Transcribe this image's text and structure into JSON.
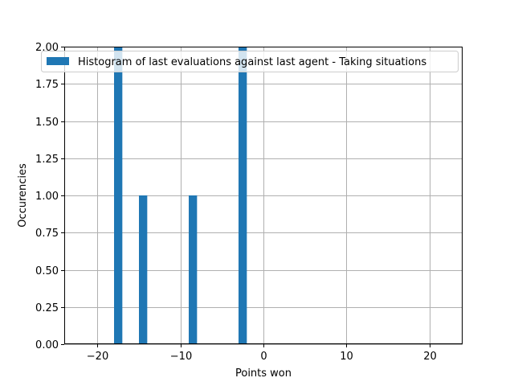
{
  "chart_data": {
    "type": "bar",
    "title": "",
    "xlabel": "Points won",
    "ylabel": "Occurencies",
    "xlim": [
      -24,
      24
    ],
    "ylim": [
      0,
      2.0
    ],
    "xticks": [
      -20,
      -10,
      0,
      10,
      20
    ],
    "xtick_labels": [
      "−20",
      "−10",
      "0",
      "10",
      "20"
    ],
    "yticks": [
      0.0,
      0.25,
      0.5,
      0.75,
      1.0,
      1.25,
      1.5,
      1.75,
      2.0
    ],
    "ytick_labels": [
      "0.00",
      "0.25",
      "0.50",
      "0.75",
      "1.00",
      "1.25",
      "1.50",
      "1.75",
      "2.00"
    ],
    "grid": true,
    "legend_position": "top-right",
    "series": [
      {
        "name": "Histogram of last evaluations against last agent - Taking situations",
        "color": "#1f77b4",
        "bins": [
          {
            "x_start": -18.0,
            "x_end": -17.0,
            "value": 2
          },
          {
            "x_start": -15.0,
            "x_end": -14.0,
            "value": 1
          },
          {
            "x_start": -9.0,
            "x_end": -8.0,
            "value": 1
          },
          {
            "x_start": -3.0,
            "x_end": -2.0,
            "value": 2
          }
        ]
      }
    ]
  }
}
